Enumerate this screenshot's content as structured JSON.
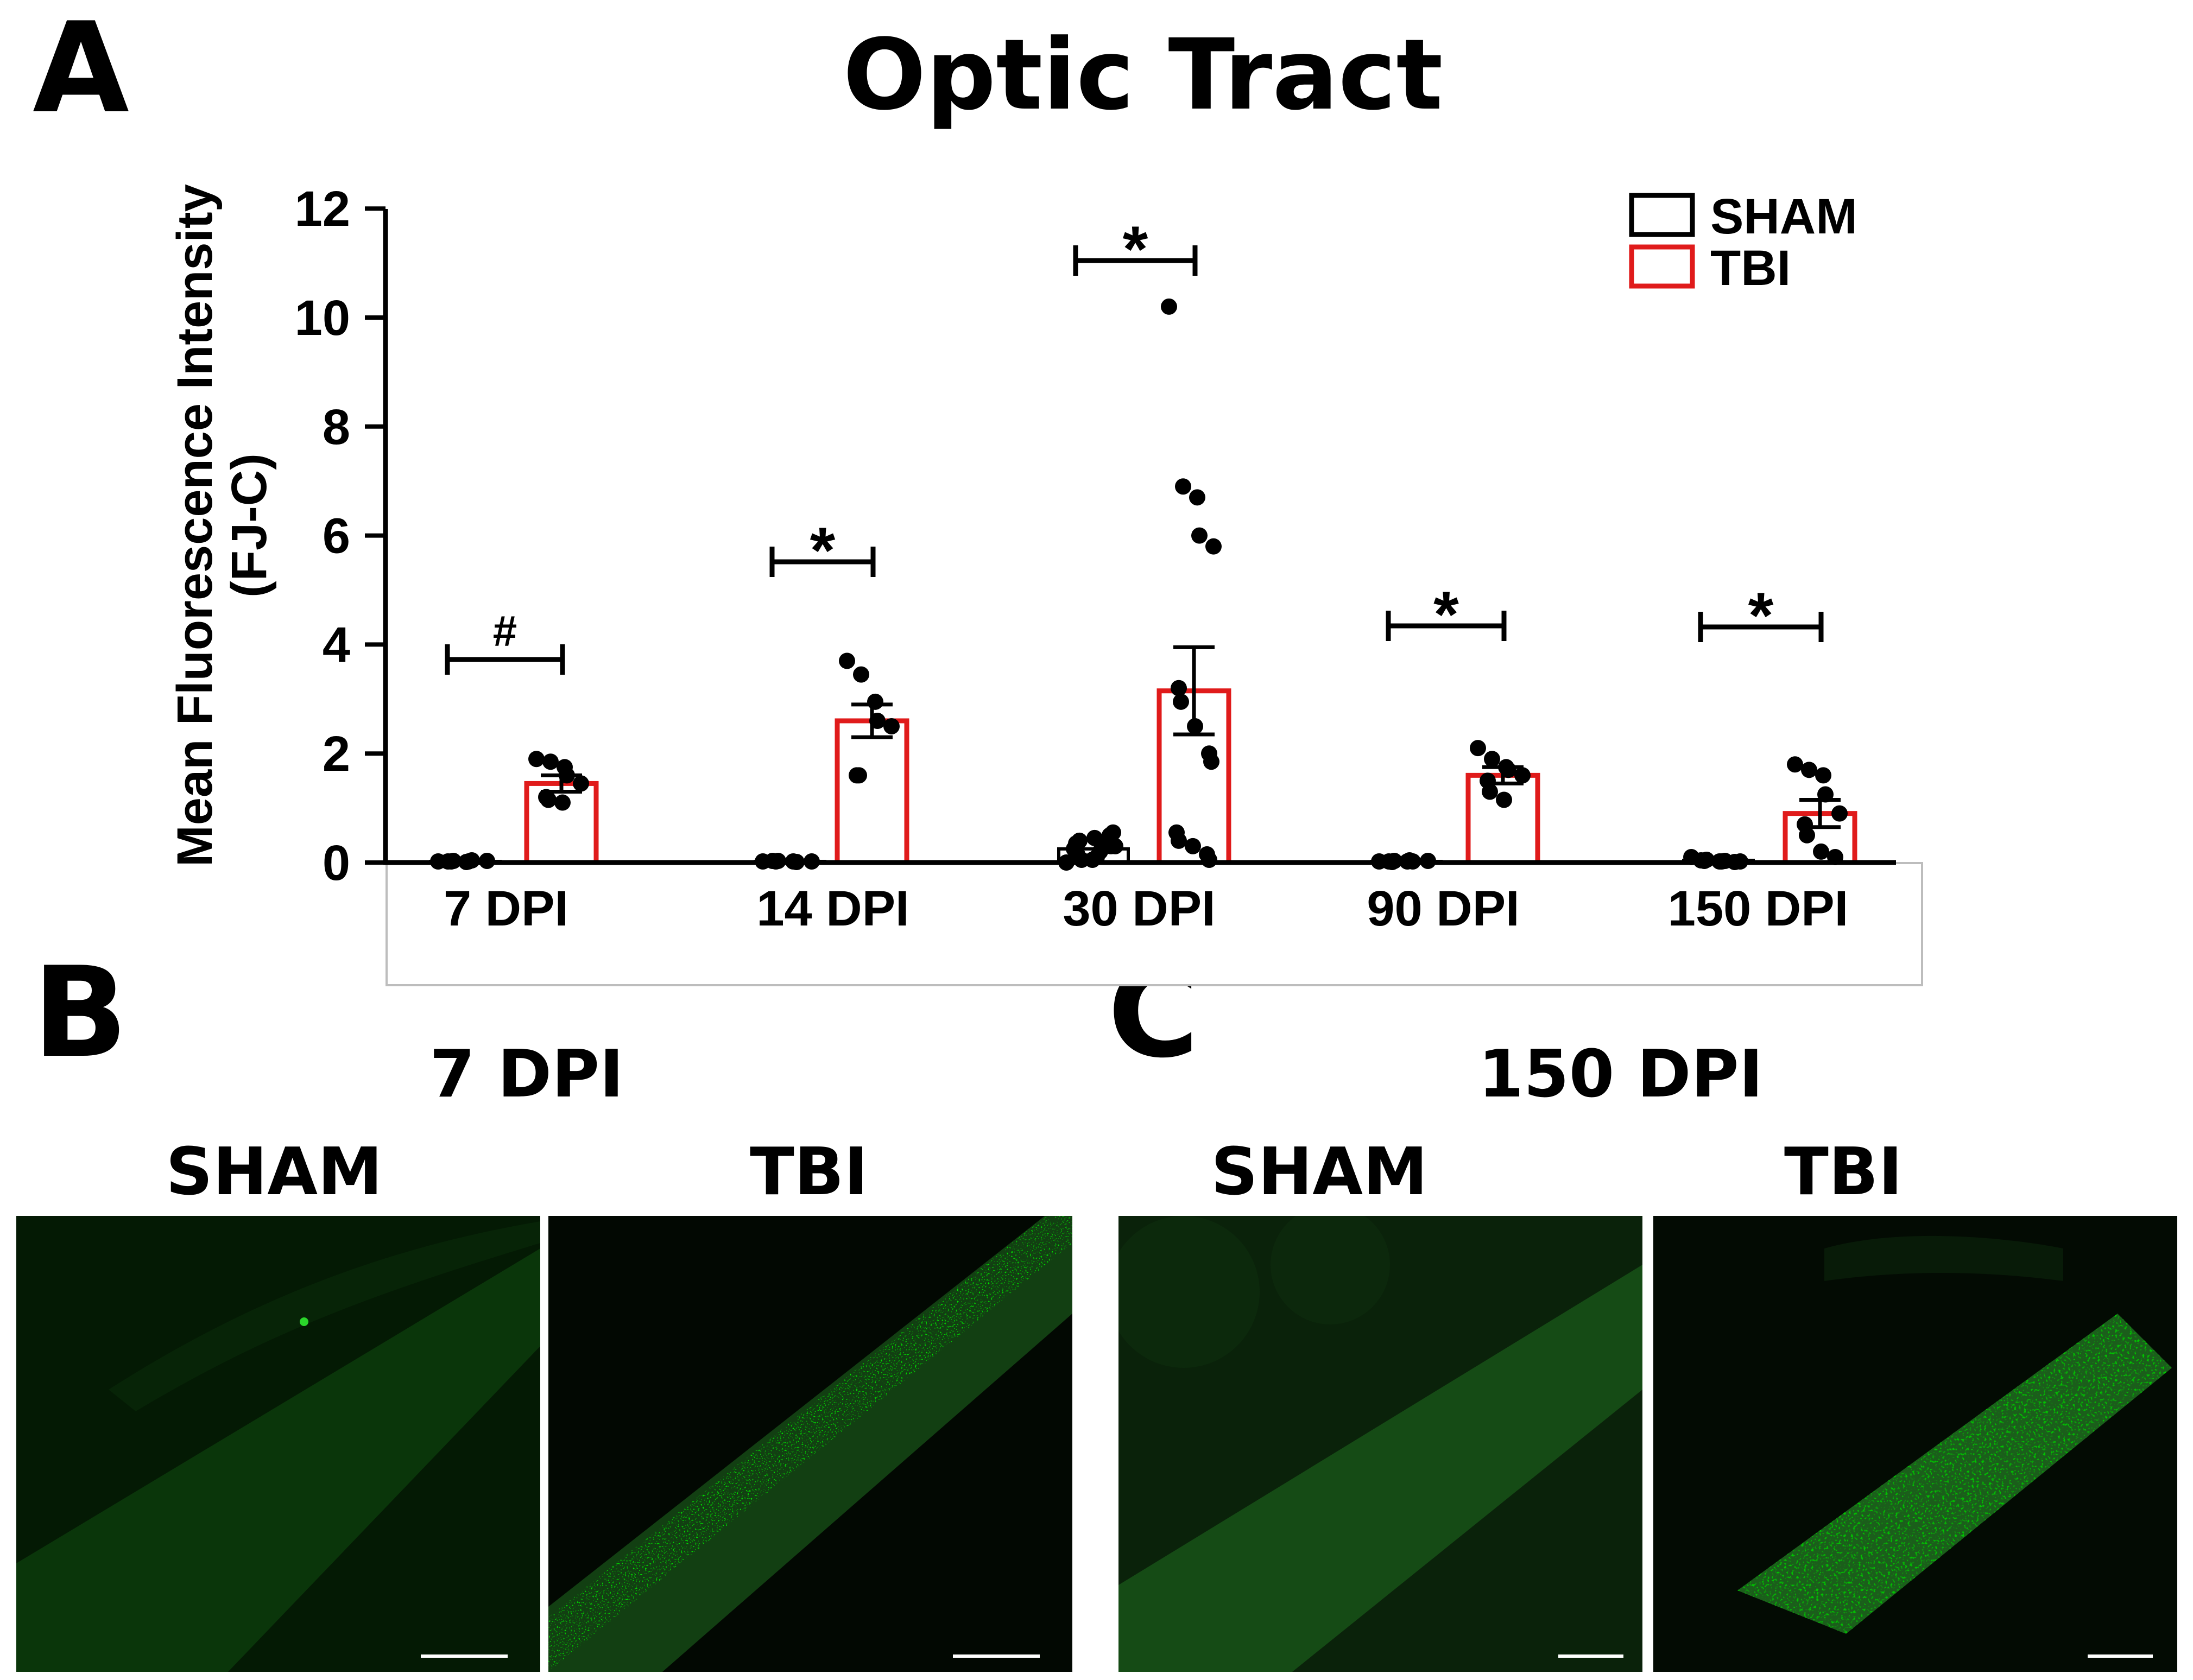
{
  "figure": {
    "panel_a_letter": "A",
    "panel_b_letter": "B",
    "panel_c_letter": "C"
  },
  "chart_data": {
    "type": "bar",
    "title": "Optic Tract",
    "ylabel_line1": "Mean Fluorescence Intensity",
    "ylabel_line2": "(FJ-C)",
    "xlabel": "",
    "ylim": [
      0,
      12
    ],
    "yticks": [
      "0",
      "2",
      "4",
      "6",
      "8",
      "10",
      "12"
    ],
    "categories": [
      "7 DPI",
      "14 DPI",
      "30 DPI",
      "90 DPI",
      "150 DPI"
    ],
    "legend": [
      "SHAM",
      "TBI"
    ],
    "legend_position": "top-right",
    "colors": {
      "sham": "#000000",
      "tbi": "#e01b1b"
    },
    "series": [
      {
        "name": "SHAM",
        "values": [
          0.02,
          0.02,
          0.25,
          0.02,
          0.04
        ],
        "sem": [
          0.01,
          0.01,
          0.06,
          0.01,
          0.02
        ],
        "points": [
          [
            0.02,
            0.03,
            0.02,
            0.04,
            0.03,
            0.02,
            0.02,
            0.01
          ],
          [
            0.02,
            0.03,
            0.02,
            0.01,
            0.02,
            0.03,
            0.02
          ],
          [
            0.0,
            0.05,
            0.1,
            0.2,
            0.3,
            0.35,
            0.4,
            0.45,
            0.5,
            0.55,
            0.25,
            0.15,
            0.05,
            0.4,
            0.3
          ],
          [
            0.02,
            0.03,
            0.04,
            0.02,
            0.03,
            0.02,
            0.01,
            0.02
          ],
          [
            0.1,
            0.05,
            0.02,
            0.03,
            0.02,
            0.04,
            0.03,
            0.02,
            0.01
          ]
        ]
      },
      {
        "name": "TBI",
        "values": [
          1.45,
          2.6,
          3.15,
          1.6,
          0.9
        ],
        "sem": [
          0.15,
          0.3,
          0.8,
          0.15,
          0.25
        ],
        "points": [
          [
            1.9,
            1.85,
            1.75,
            1.6,
            1.45,
            1.2,
            1.15,
            1.1
          ],
          [
            3.7,
            3.45,
            2.95,
            2.6,
            2.5,
            1.6,
            1.6
          ],
          [
            10.2,
            6.9,
            6.7,
            6.0,
            5.8,
            3.2,
            2.95,
            2.5,
            2.0,
            1.85,
            0.55,
            0.4,
            0.3,
            0.15,
            0.05
          ],
          [
            2.1,
            1.9,
            1.75,
            1.7,
            1.6,
            1.5,
            1.3,
            1.15
          ],
          [
            1.8,
            1.7,
            1.6,
            1.25,
            0.9,
            0.7,
            0.5,
            0.2,
            0.1
          ]
        ]
      }
    ],
    "significance": [
      "#",
      "*",
      "*",
      "*",
      "*"
    ]
  },
  "panel_b": {
    "timepoint": "7 DPI",
    "left_label": "SHAM",
    "right_label": "TBI"
  },
  "panel_c": {
    "timepoint": "150 DPI",
    "left_label": "SHAM",
    "right_label": "TBI"
  }
}
